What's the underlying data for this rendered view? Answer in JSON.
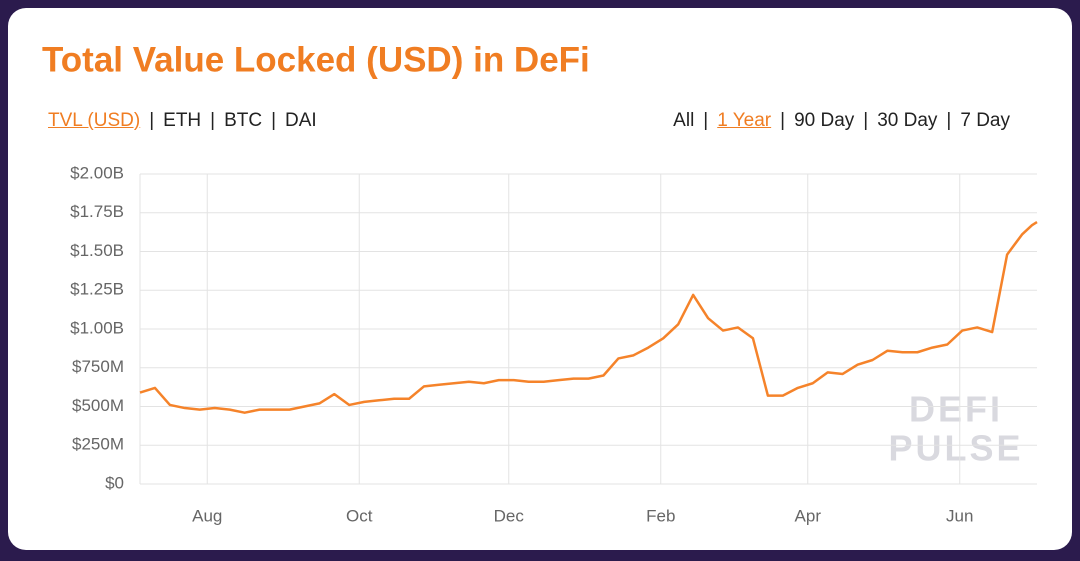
{
  "chart_data": {
    "type": "line",
    "title": "Total Value Locked (USD) in DeFi",
    "tabs": {
      "metrics": [
        "TVL (USD)",
        "ETH",
        "BTC",
        "DAI"
      ],
      "selected_metric": 0,
      "ranges": [
        "All",
        "1 Year",
        "90 Day",
        "30 Day",
        "7 Day"
      ],
      "selected_range": 1,
      "separator": "|"
    },
    "watermark": [
      "DEFI",
      "PULSE"
    ],
    "xlim": [
      0,
      360
    ],
    "xticks": [
      {
        "value": 27,
        "label": "Aug"
      },
      {
        "value": 88,
        "label": "Oct"
      },
      {
        "value": 148,
        "label": "Dec"
      },
      {
        "value": 209,
        "label": "Feb"
      },
      {
        "value": 268,
        "label": "Apr"
      },
      {
        "value": 329,
        "label": "Jun"
      }
    ],
    "ylim": [
      0,
      2000000000
    ],
    "yticks": [
      {
        "value": 0,
        "label": "$0"
      },
      {
        "value": 250000000,
        "label": "$250M"
      },
      {
        "value": 500000000,
        "label": "$500M"
      },
      {
        "value": 750000000,
        "label": "$750M"
      },
      {
        "value": 1000000000,
        "label": "$1.00B"
      },
      {
        "value": 1250000000,
        "label": "$1.25B"
      },
      {
        "value": 1500000000,
        "label": "$1.50B"
      },
      {
        "value": 1750000000,
        "label": "$1.75B"
      },
      {
        "value": 2000000000,
        "label": "$2.00B"
      }
    ],
    "grid": true,
    "x": [
      0,
      6,
      12,
      18,
      24,
      30,
      36,
      42,
      48,
      54,
      60,
      66,
      72,
      78,
      84,
      90,
      96,
      102,
      108,
      114,
      120,
      126,
      132,
      138,
      144,
      150,
      156,
      162,
      168,
      174,
      180,
      186,
      192,
      198,
      204,
      210,
      216,
      222,
      228,
      234,
      240,
      246,
      252,
      258,
      264,
      270,
      276,
      282,
      288,
      294,
      300,
      306,
      312,
      318,
      324,
      330,
      336,
      342,
      348,
      354,
      358,
      360
    ],
    "series": [
      {
        "name": "TVL (USD)",
        "color": "#f5832a",
        "values": [
          590000000,
          620000000,
          510000000,
          490000000,
          480000000,
          490000000,
          480000000,
          460000000,
          480000000,
          480000000,
          480000000,
          500000000,
          520000000,
          580000000,
          510000000,
          530000000,
          540000000,
          550000000,
          550000000,
          630000000,
          640000000,
          650000000,
          660000000,
          650000000,
          670000000,
          670000000,
          660000000,
          660000000,
          670000000,
          680000000,
          680000000,
          700000000,
          810000000,
          830000000,
          880000000,
          940000000,
          1030000000,
          1220000000,
          1070000000,
          990000000,
          1010000000,
          940000000,
          570000000,
          570000000,
          620000000,
          650000000,
          720000000,
          710000000,
          770000000,
          800000000,
          860000000,
          850000000,
          850000000,
          880000000,
          900000000,
          990000000,
          1010000000,
          980000000,
          1480000000,
          1610000000,
          1670000000,
          1690000000
        ]
      }
    ]
  }
}
